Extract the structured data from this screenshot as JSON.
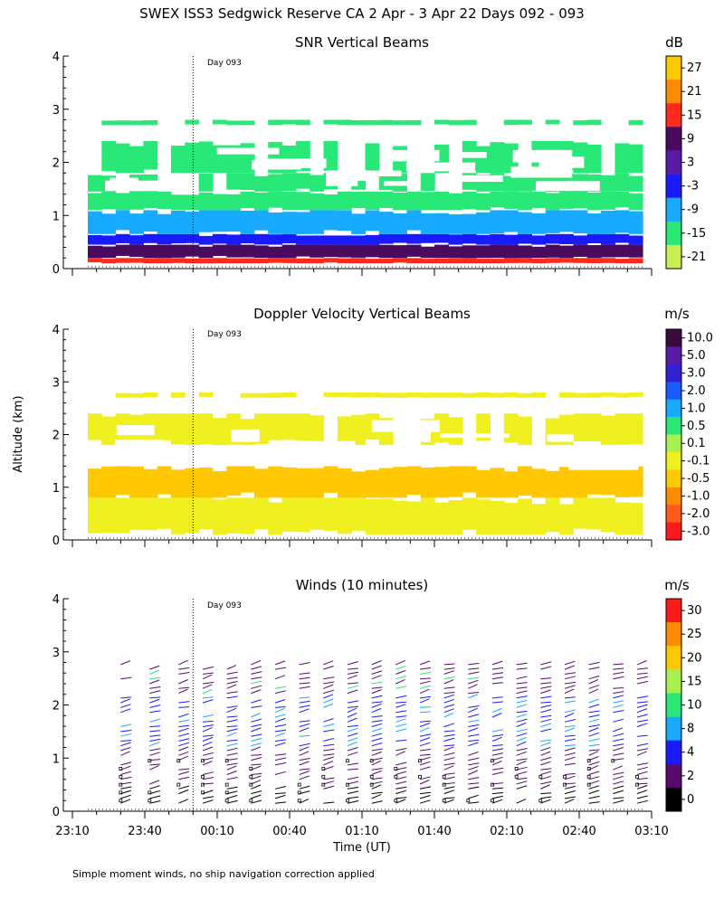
{
  "title": "SWEX ISS3 Sedgwick Reserve CA   2 Apr -  3 Apr 22 Days 092 - 093",
  "footer_note": "Simple moment winds, no ship navigation correction applied",
  "chart_data": [
    {
      "type": "heatmap",
      "title": "SNR Vertical Beams",
      "ylabel": "",
      "ylim": [
        0,
        4
      ],
      "yticks": [
        "0",
        "1",
        "2",
        "3",
        "4"
      ],
      "day_marker": {
        "label": "Day 093",
        "time": "00:00"
      },
      "colorbar": {
        "unit": "dB",
        "labels": [
          "27",
          "21",
          "15",
          "9",
          "3",
          "-3",
          "-9",
          "-15",
          "-21"
        ],
        "colors": [
          "#ffc800",
          "#ff8c00",
          "#ff2a1a",
          "#4a0a5e",
          "#5a1aa8",
          "#1a1aff",
          "#18aaff",
          "#28e878",
          "#c8f050"
        ]
      },
      "layers": [
        {
          "bottom": 0.1,
          "top": 0.2,
          "color": "#ff2a1a"
        },
        {
          "bottom": 0.2,
          "top": 0.45,
          "color": "#4a0a5e"
        },
        {
          "bottom": 0.45,
          "top": 0.65,
          "color": "#1a1aff"
        },
        {
          "bottom": 0.65,
          "top": 1.1,
          "color": "#18aaff"
        },
        {
          "bottom": 1.1,
          "top": 1.45,
          "color": "#28e878"
        },
        {
          "bottom": 1.45,
          "top": 1.8,
          "color": "#28e878"
        },
        {
          "bottom": 1.8,
          "top": 2.4,
          "color": "#28e878"
        },
        {
          "bottom": 2.7,
          "top": 2.8,
          "color": "#28e878"
        }
      ]
    },
    {
      "type": "heatmap",
      "title": "Doppler Velocity Vertical Beams",
      "ylabel": "Altitude (km)",
      "ylim": [
        0,
        4
      ],
      "yticks": [
        "0",
        "1",
        "2",
        "3",
        "4"
      ],
      "day_marker": {
        "label": "Day 093",
        "time": "00:00"
      },
      "colorbar": {
        "unit": "m/s",
        "labels": [
          "10.0",
          "5.0",
          "3.0",
          "2.0",
          "1.0",
          "0.5",
          "0.1",
          "-0.1",
          "-0.5",
          "-1.0",
          "-2.0",
          "-3.0"
        ],
        "colors": [
          "#3a0a3e",
          "#5a1aa8",
          "#3020d8",
          "#1a5aff",
          "#18aaff",
          "#28e878",
          "#a8f050",
          "#f0f020",
          "#ffc800",
          "#ff8c00",
          "#ff5a1a",
          "#ff1a1a"
        ]
      },
      "layers": [
        {
          "bottom": 0.1,
          "top": 0.8,
          "color": "#f0f020"
        },
        {
          "bottom": 0.8,
          "top": 1.4,
          "color": "#ffc800"
        },
        {
          "bottom": 1.8,
          "top": 2.4,
          "color": "#f0f020"
        },
        {
          "bottom": 2.7,
          "top": 2.8,
          "color": "#f0f020"
        }
      ]
    },
    {
      "type": "barbs",
      "title": "Winds (10 minutes)",
      "xlabel": "Time (UT)",
      "ylim": [
        0,
        4
      ],
      "yticks": [
        "0",
        "1",
        "2",
        "3",
        "4"
      ],
      "xticks": [
        "23:10",
        "23:40",
        "00:10",
        "00:40",
        "01:10",
        "01:40",
        "02:10",
        "02:40",
        "03:10"
      ],
      "xlim_minutes": [
        -50,
        190
      ],
      "day_marker": {
        "label": "Day 093",
        "time": "00:00"
      },
      "colorbar": {
        "unit": "m/s",
        "labels": [
          "30",
          "25",
          "20",
          "15",
          "10",
          "8",
          "4",
          "2",
          "0"
        ],
        "colors": [
          "#ff1a1a",
          "#ff8c00",
          "#ffc800",
          "#a8f050",
          "#28e878",
          "#18aaff",
          "#1a1aff",
          "#5a0a6e",
          "#000000"
        ]
      },
      "profile_times_minutes": [
        -30,
        -18,
        -6,
        4,
        14,
        24,
        34,
        44,
        54,
        64,
        74,
        84,
        94,
        104,
        114,
        124,
        134,
        144,
        154,
        164,
        174,
        184
      ]
    }
  ]
}
